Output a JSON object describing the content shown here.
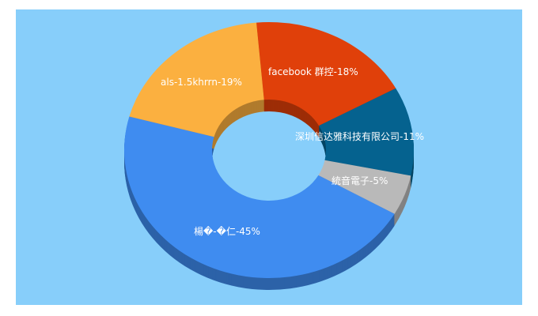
{
  "chart_data": {
    "type": "pie",
    "style": "3d-donut",
    "title": "",
    "slices": [
      {
        "label": "facebook 群控-18%",
        "value": 18,
        "color": "#e0400a"
      },
      {
        "label": "深圳信达雅科技有限公司-11%",
        "value": 11,
        "color": "#05628f"
      },
      {
        "label": "統音電子-5%",
        "value": 5,
        "color": "#b9b9b9"
      },
      {
        "label": "楊�-�仁-45%",
        "value": 45,
        "color": "#3f8cf0"
      },
      {
        "label": "als-1.5khrrn-19%",
        "value": 19,
        "color": "#fbb040"
      }
    ],
    "background": "#87cefa"
  }
}
